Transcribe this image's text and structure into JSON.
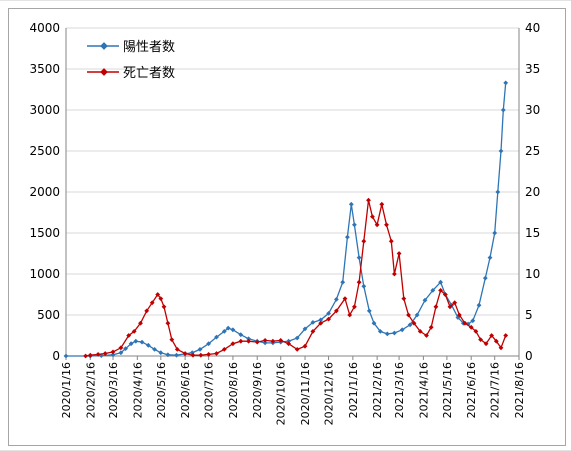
{
  "chart_data": {
    "type": "line",
    "title": "",
    "xlabel": "",
    "ylabel": "",
    "x_range": [
      "2020-01-16",
      "2021-08-16"
    ],
    "x_tick_labels": [
      "2020/1/16",
      "2020/2/16",
      "2020/3/16",
      "2020/4/16",
      "2020/5/16",
      "2020/6/16",
      "2020/7/16",
      "2020/8/16",
      "2020/9/16",
      "2020/10/16",
      "2020/11/16",
      "2020/12/16",
      "2021/1/16",
      "2021/2/16",
      "2021/3/16",
      "2021/4/16",
      "2021/5/16",
      "2021/6/16",
      "2021/7/16",
      "2021/8/16"
    ],
    "y_left": {
      "min": 0,
      "max": 4000,
      "step": 500,
      "ticks": [
        "0",
        "500",
        "1000",
        "1500",
        "2000",
        "2500",
        "3000",
        "3500",
        "4000"
      ]
    },
    "y_right": {
      "min": 0,
      "max": 40,
      "step": 5,
      "ticks": [
        "0",
        "5",
        "10",
        "15",
        "20",
        "25",
        "30",
        "35",
        "40"
      ]
    },
    "grid": true,
    "legend_position": "top-left",
    "series": [
      {
        "name": "陽性者数",
        "color": "#2e75b6",
        "axis": "left",
        "points": [
          [
            "2020-01-16",
            0
          ],
          [
            "2020-02-16",
            0
          ],
          [
            "2020-03-01",
            5
          ],
          [
            "2020-03-16",
            15
          ],
          [
            "2020-03-26",
            40
          ],
          [
            "2020-04-01",
            90
          ],
          [
            "2020-04-08",
            150
          ],
          [
            "2020-04-14",
            180
          ],
          [
            "2020-04-22",
            170
          ],
          [
            "2020-04-30",
            130
          ],
          [
            "2020-05-08",
            80
          ],
          [
            "2020-05-16",
            40
          ],
          [
            "2020-05-25",
            15
          ],
          [
            "2020-06-05",
            10
          ],
          [
            "2020-06-16",
            25
          ],
          [
            "2020-06-25",
            40
          ],
          [
            "2020-07-05",
            80
          ],
          [
            "2020-07-16",
            150
          ],
          [
            "2020-07-26",
            230
          ],
          [
            "2020-08-05",
            300
          ],
          [
            "2020-08-10",
            340
          ],
          [
            "2020-08-16",
            320
          ],
          [
            "2020-08-26",
            260
          ],
          [
            "2020-09-05",
            210
          ],
          [
            "2020-09-16",
            180
          ],
          [
            "2020-09-26",
            160
          ],
          [
            "2020-10-06",
            160
          ],
          [
            "2020-10-16",
            170
          ],
          [
            "2020-10-26",
            180
          ],
          [
            "2020-11-06",
            220
          ],
          [
            "2020-11-16",
            330
          ],
          [
            "2020-11-26",
            410
          ],
          [
            "2020-12-06",
            440
          ],
          [
            "2020-12-16",
            520
          ],
          [
            "2020-12-26",
            690
          ],
          [
            "2021-01-03",
            900
          ],
          [
            "2021-01-09",
            1450
          ],
          [
            "2021-01-14",
            1850
          ],
          [
            "2021-01-18",
            1600
          ],
          [
            "2021-01-24",
            1200
          ],
          [
            "2021-01-30",
            850
          ],
          [
            "2021-02-06",
            550
          ],
          [
            "2021-02-12",
            400
          ],
          [
            "2021-02-20",
            300
          ],
          [
            "2021-03-01",
            270
          ],
          [
            "2021-03-10",
            280
          ],
          [
            "2021-03-20",
            320
          ],
          [
            "2021-03-30",
            380
          ],
          [
            "2021-04-08",
            500
          ],
          [
            "2021-04-18",
            680
          ],
          [
            "2021-04-28",
            800
          ],
          [
            "2021-05-08",
            900
          ],
          [
            "2021-05-14",
            750
          ],
          [
            "2021-05-22",
            620
          ],
          [
            "2021-05-30",
            470
          ],
          [
            "2021-06-06",
            400
          ],
          [
            "2021-06-12",
            390
          ],
          [
            "2021-06-18",
            430
          ],
          [
            "2021-06-26",
            620
          ],
          [
            "2021-07-04",
            950
          ],
          [
            "2021-07-10",
            1200
          ],
          [
            "2021-07-16",
            1500
          ],
          [
            "2021-07-20",
            2000
          ],
          [
            "2021-07-24",
            2500
          ],
          [
            "2021-07-27",
            3000
          ],
          [
            "2021-07-30",
            3330
          ]
        ]
      },
      {
        "name": "死亡者数",
        "color": "#c00000",
        "axis": "right",
        "points": [
          [
            "2020-02-10",
            0
          ],
          [
            "2020-02-16",
            0.1
          ],
          [
            "2020-02-26",
            0.2
          ],
          [
            "2020-03-06",
            0.3
          ],
          [
            "2020-03-16",
            0.5
          ],
          [
            "2020-03-26",
            1.0
          ],
          [
            "2020-04-05",
            2.5
          ],
          [
            "2020-04-12",
            3.0
          ],
          [
            "2020-04-20",
            4.0
          ],
          [
            "2020-04-28",
            5.5
          ],
          [
            "2020-05-05",
            6.5
          ],
          [
            "2020-05-12",
            7.5
          ],
          [
            "2020-05-16",
            7.0
          ],
          [
            "2020-05-20",
            6.0
          ],
          [
            "2020-05-25",
            4.0
          ],
          [
            "2020-05-30",
            2.0
          ],
          [
            "2020-06-06",
            0.8
          ],
          [
            "2020-06-16",
            0.3
          ],
          [
            "2020-06-26",
            0.1
          ],
          [
            "2020-07-06",
            0.1
          ],
          [
            "2020-07-16",
            0.2
          ],
          [
            "2020-07-26",
            0.3
          ],
          [
            "2020-08-05",
            0.8
          ],
          [
            "2020-08-16",
            1.5
          ],
          [
            "2020-08-26",
            1.8
          ],
          [
            "2020-09-05",
            1.8
          ],
          [
            "2020-09-16",
            1.7
          ],
          [
            "2020-09-26",
            1.9
          ],
          [
            "2020-10-06",
            1.8
          ],
          [
            "2020-10-16",
            1.9
          ],
          [
            "2020-10-26",
            1.5
          ],
          [
            "2020-11-06",
            0.8
          ],
          [
            "2020-11-16",
            1.2
          ],
          [
            "2020-11-26",
            3.0
          ],
          [
            "2020-12-06",
            4.0
          ],
          [
            "2020-12-16",
            4.5
          ],
          [
            "2020-12-26",
            5.5
          ],
          [
            "2021-01-06",
            7.0
          ],
          [
            "2021-01-12",
            5.0
          ],
          [
            "2021-01-18",
            6.0
          ],
          [
            "2021-01-24",
            9.0
          ],
          [
            "2021-01-30",
            14.0
          ],
          [
            "2021-02-05",
            19.0
          ],
          [
            "2021-02-10",
            17.0
          ],
          [
            "2021-02-16",
            16.0
          ],
          [
            "2021-02-22",
            18.5
          ],
          [
            "2021-02-28",
            16.0
          ],
          [
            "2021-03-06",
            14.0
          ],
          [
            "2021-03-10",
            10.0
          ],
          [
            "2021-03-16",
            12.5
          ],
          [
            "2021-03-22",
            7.0
          ],
          [
            "2021-03-28",
            5.0
          ],
          [
            "2021-04-04",
            4.0
          ],
          [
            "2021-04-12",
            3.0
          ],
          [
            "2021-04-20",
            2.5
          ],
          [
            "2021-04-26",
            3.5
          ],
          [
            "2021-05-02",
            6.0
          ],
          [
            "2021-05-08",
            8.0
          ],
          [
            "2021-05-14",
            7.5
          ],
          [
            "2021-05-20",
            6.0
          ],
          [
            "2021-05-26",
            6.5
          ],
          [
            "2021-06-01",
            5.0
          ],
          [
            "2021-06-08",
            4.0
          ],
          [
            "2021-06-16",
            3.5
          ],
          [
            "2021-06-22",
            3.0
          ],
          [
            "2021-06-28",
            2.0
          ],
          [
            "2021-07-05",
            1.5
          ],
          [
            "2021-07-12",
            2.5
          ],
          [
            "2021-07-18",
            1.8
          ],
          [
            "2021-07-24",
            1.0
          ],
          [
            "2021-07-30",
            2.5
          ]
        ]
      }
    ]
  }
}
